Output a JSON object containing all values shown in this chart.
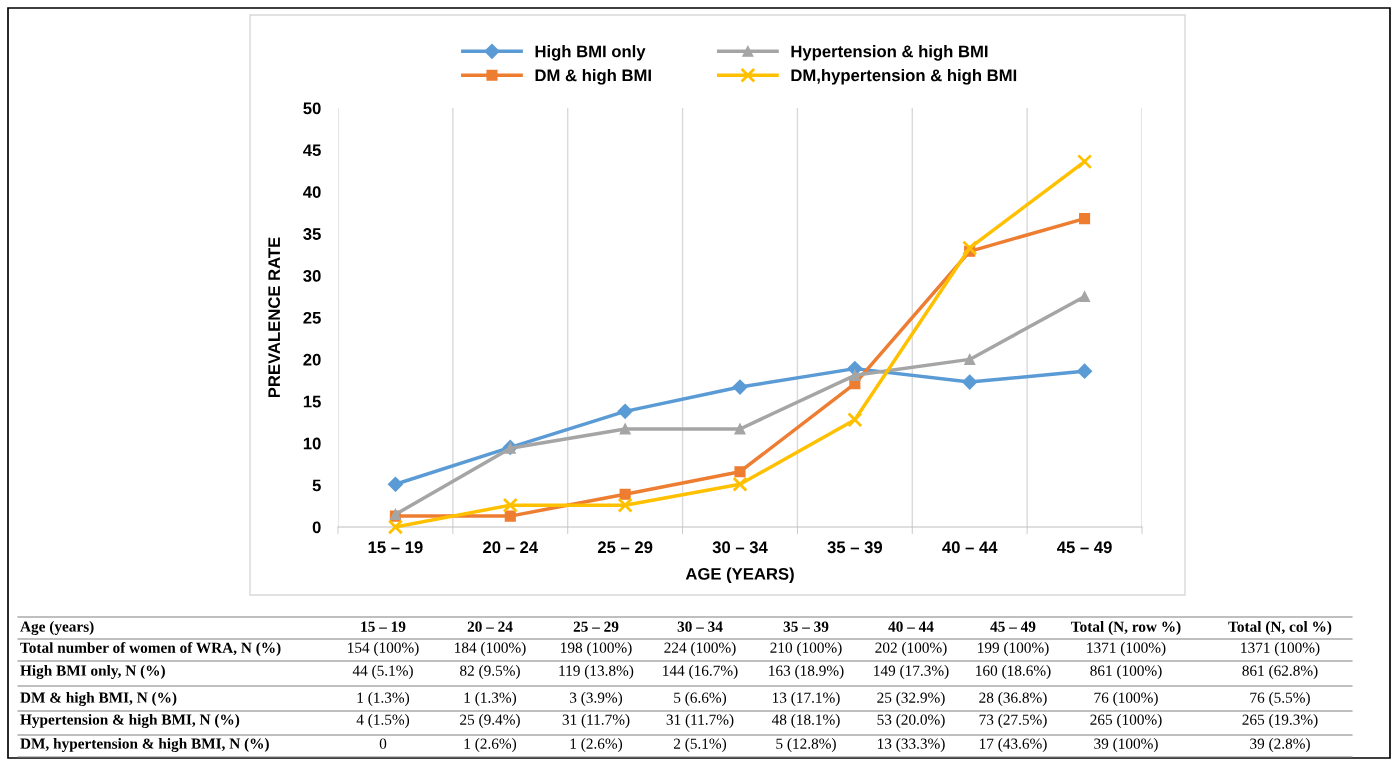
{
  "chart_data": {
    "type": "line",
    "xlabel": "AGE (YEARS)",
    "ylabel": "PREVALENCE RATE",
    "categories": [
      "15 – 19",
      "20 – 24",
      "25 – 29",
      "30 – 34",
      "35 – 39",
      "40 – 44",
      "45 – 49"
    ],
    "series": [
      {
        "name": "High BMI only",
        "color": "#5b9bd5",
        "marker": "diamond",
        "values": [
          5.1,
          9.5,
          13.8,
          16.7,
          18.9,
          17.3,
          18.6
        ]
      },
      {
        "name": "DM & high BMI",
        "color": "#ed7d31",
        "marker": "square",
        "values": [
          1.3,
          1.3,
          3.9,
          6.6,
          17.1,
          32.9,
          36.8
        ]
      },
      {
        "name": "Hypertension & high BMI",
        "color": "#a5a5a5",
        "marker": "triangle",
        "values": [
          1.5,
          9.4,
          11.7,
          11.7,
          18.1,
          20.0,
          27.5
        ]
      },
      {
        "name": "DM,hypertension & high BMI",
        "color": "#ffc000",
        "marker": "cross",
        "values": [
          0,
          2.6,
          2.6,
          5.1,
          12.8,
          33.3,
          43.6
        ]
      }
    ],
    "ylim": [
      0,
      50
    ],
    "yticks": [
      0,
      5,
      10,
      15,
      20,
      25,
      30,
      35,
      40,
      45,
      50
    ],
    "grid": "x",
    "legend": "top",
    "line_style": "solid",
    "annotations": [
      "Age (years)",
      "15 – 19",
      "20 – 24",
      "25 – 29",
      "30 – 34",
      "35 – 39",
      "40 – 44",
      "45 – 49",
      "Total (N, row %)",
      "Total (N, col %)",
      "Total number of women of WRA, N (%)",
      "154 (100%)",
      "184 (100%)",
      "198 (100%)",
      "224 (100%)",
      "210 (100%)",
      "202 (100%)",
      "199 (100%)",
      "1371 (100%)",
      "1371 (100%)",
      "High BMI only, N (%)",
      "44 (5.1%)",
      "82 (9.5%)",
      "119 (13.8%)",
      "144 (16.7%)",
      "163 (18.9%)",
      "149 (17.3%)",
      "160 (18.6%)",
      "861 (100%)",
      "861 (62.8%)",
      "DM & high BMI, N (%)",
      "1 (1.3%)",
      "1 (1.3%)",
      "3 (3.9%)",
      "5 (6.6%)",
      "13 (17.1%)",
      "25 (32.9%)",
      "28 (36.8%)",
      "76 (100%)",
      "76 (5.5%)",
      "Hypertension & high BMI, N (%)",
      "4 (1.5%)",
      "25 (9.4%)",
      "31 (11.7%)",
      "31 (11.7%)",
      "48 (18.1%)",
      "53 (20.0%)",
      "73 (27.5%)",
      "265 (100%)",
      "265 (19.3%)",
      "DM, hypertension & high BMI, N (%)",
      "0",
      "1 (2.6%)",
      "1 (2.6%)",
      "2 (5.1%)",
      "5 (12.8%)",
      "13 (33.3%)",
      "17 (43.6%)",
      "39 (100%)",
      "39 (2.8%)"
    ]
  }
}
